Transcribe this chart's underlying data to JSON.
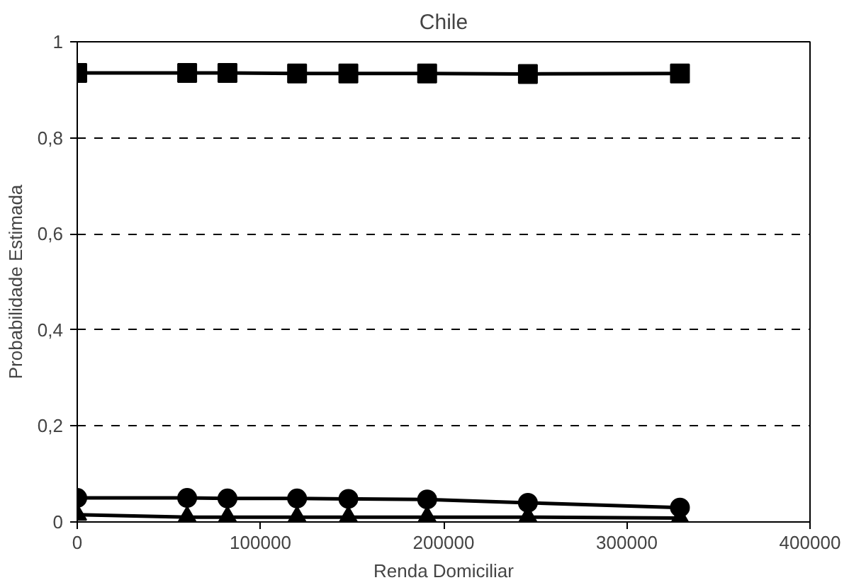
{
  "chart_data": {
    "type": "line",
    "title": "Chile",
    "xlabel": "Renda Domiciliar",
    "ylabel": "Probabilidade Estimada",
    "x": [
      0,
      60000,
      82000,
      120000,
      148000,
      191000,
      246000,
      329000
    ],
    "series": [
      {
        "color": "#000000",
        "marker": "square",
        "values": [
          0.935,
          0.935,
          0.935,
          0.934,
          0.934,
          0.934,
          0.933,
          0.934
        ]
      },
      {
        "color": "#000000",
        "marker": "circle",
        "values": [
          0.05,
          0.05,
          0.049,
          0.049,
          0.048,
          0.047,
          0.04,
          0.03
        ]
      },
      {
        "color": "#000000",
        "marker": "triangle",
        "values": [
          0.015,
          0.01,
          0.01,
          0.01,
          0.01,
          0.01,
          0.01,
          0.008
        ]
      }
    ],
    "xlim": [
      0,
      400000
    ],
    "xticks": [
      0,
      100000,
      200000,
      300000,
      400000
    ],
    "ylim": [
      0,
      1
    ],
    "yticks": [
      0,
      {
        "value": 0.2,
        "label": "0,2"
      },
      {
        "value": 0.4,
        "label": "0,4"
      },
      {
        "value": 0.6,
        "label": "0,6"
      },
      {
        "value": 0.8,
        "label": "0,8"
      },
      1
    ],
    "grid": "y",
    "line_style": "solid"
  }
}
